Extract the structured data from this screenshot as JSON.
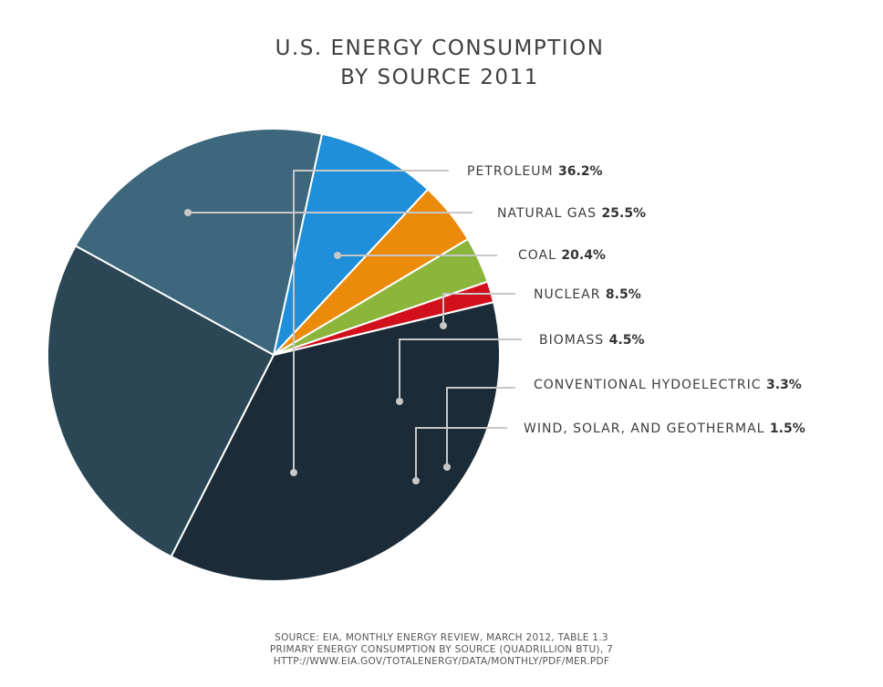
{
  "chart_data": {
    "type": "pie",
    "title": [
      "U.S. ENERGY CONSUMPTION",
      "BY SOURCE 2011"
    ],
    "slices": [
      {
        "name": "PETROLEUM",
        "value": 36.2,
        "label_value": "36.2%",
        "color": "#1b2c38"
      },
      {
        "name": "NATURAL GAS",
        "value": 25.5,
        "label_value": "25.5%",
        "color": "#2b4756"
      },
      {
        "name": "COAL",
        "value": 20.4,
        "label_value": "20.4%",
        "color": "#3d677d"
      },
      {
        "name": "NUCLEAR",
        "value": 8.5,
        "label_value": "8.5%",
        "color": "#1e8fd8"
      },
      {
        "name": "BIOMASS",
        "value": 4.5,
        "label_value": "4.5%",
        "color": "#ec8a0c"
      },
      {
        "name": "CONVENTIONAL HYDOELECTRIC",
        "value": 3.3,
        "label_value": "3.3%",
        "color": "#8cb53b"
      },
      {
        "name": "WIND, SOLAR, AND GEOTHERMAL",
        "value": 1.5,
        "label_value": "1.5%",
        "color": "#d2101c"
      }
    ],
    "source": [
      "SOURCE: EIA, MONTHLY ENERGY REVIEW, MARCH 2012, TABLE 1.3",
      "PRIMARY ENERGY CONSUMPTION BY SOURCE (QUADRILLION BTU), 7",
      "HTTP://WWW.EIA.GOV/TOTALENERGY/DATA/MONTHLY/PDF/MER.PDF"
    ]
  }
}
